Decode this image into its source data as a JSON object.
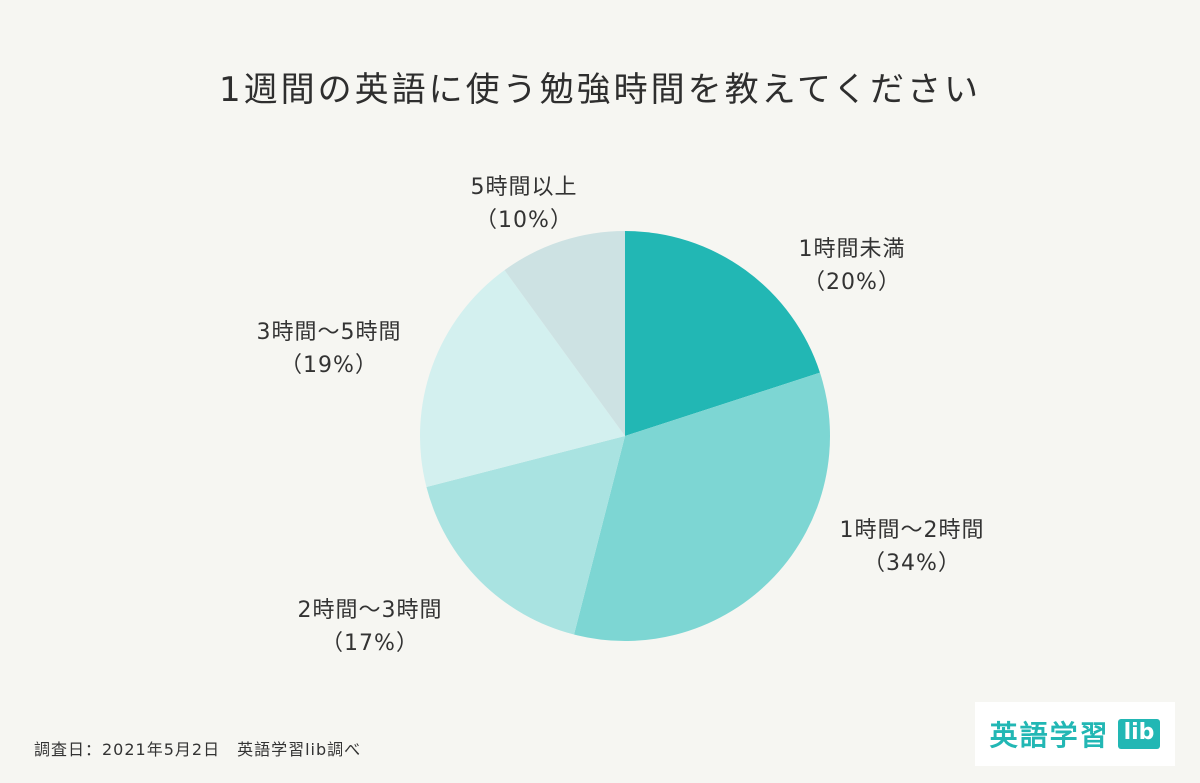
{
  "chart_data": {
    "type": "pie",
    "title": "1週間の英語に使う勉強時間を教えてください",
    "slices": [
      {
        "name": "1時間未満",
        "value": 20,
        "value_label": "（20%）",
        "color": "#22b7b4"
      },
      {
        "name": "1時間～2時間",
        "value": 34,
        "value_label": "（34%）",
        "color": "#7dd6d3"
      },
      {
        "name": "2時間～3時間",
        "value": 17,
        "value_label": "（17%）",
        "color": "#a9e3e1"
      },
      {
        "name": "3時間～5時間",
        "value": 19,
        "value_label": "（19%）",
        "color": "#d3f0ef"
      },
      {
        "name": "5時間以上",
        "value": 10,
        "value_label": "（10%）",
        "color": "#cde2e3"
      }
    ],
    "start": "12 o'clock",
    "direction": "clockwise",
    "legend": "none",
    "labels": "outside"
  },
  "footer": {
    "note": "調査日：2021年5月2日　英語学習lib調べ"
  },
  "logo": {
    "text": "英語学習",
    "badge": "lib",
    "color": "#22b7b4"
  }
}
